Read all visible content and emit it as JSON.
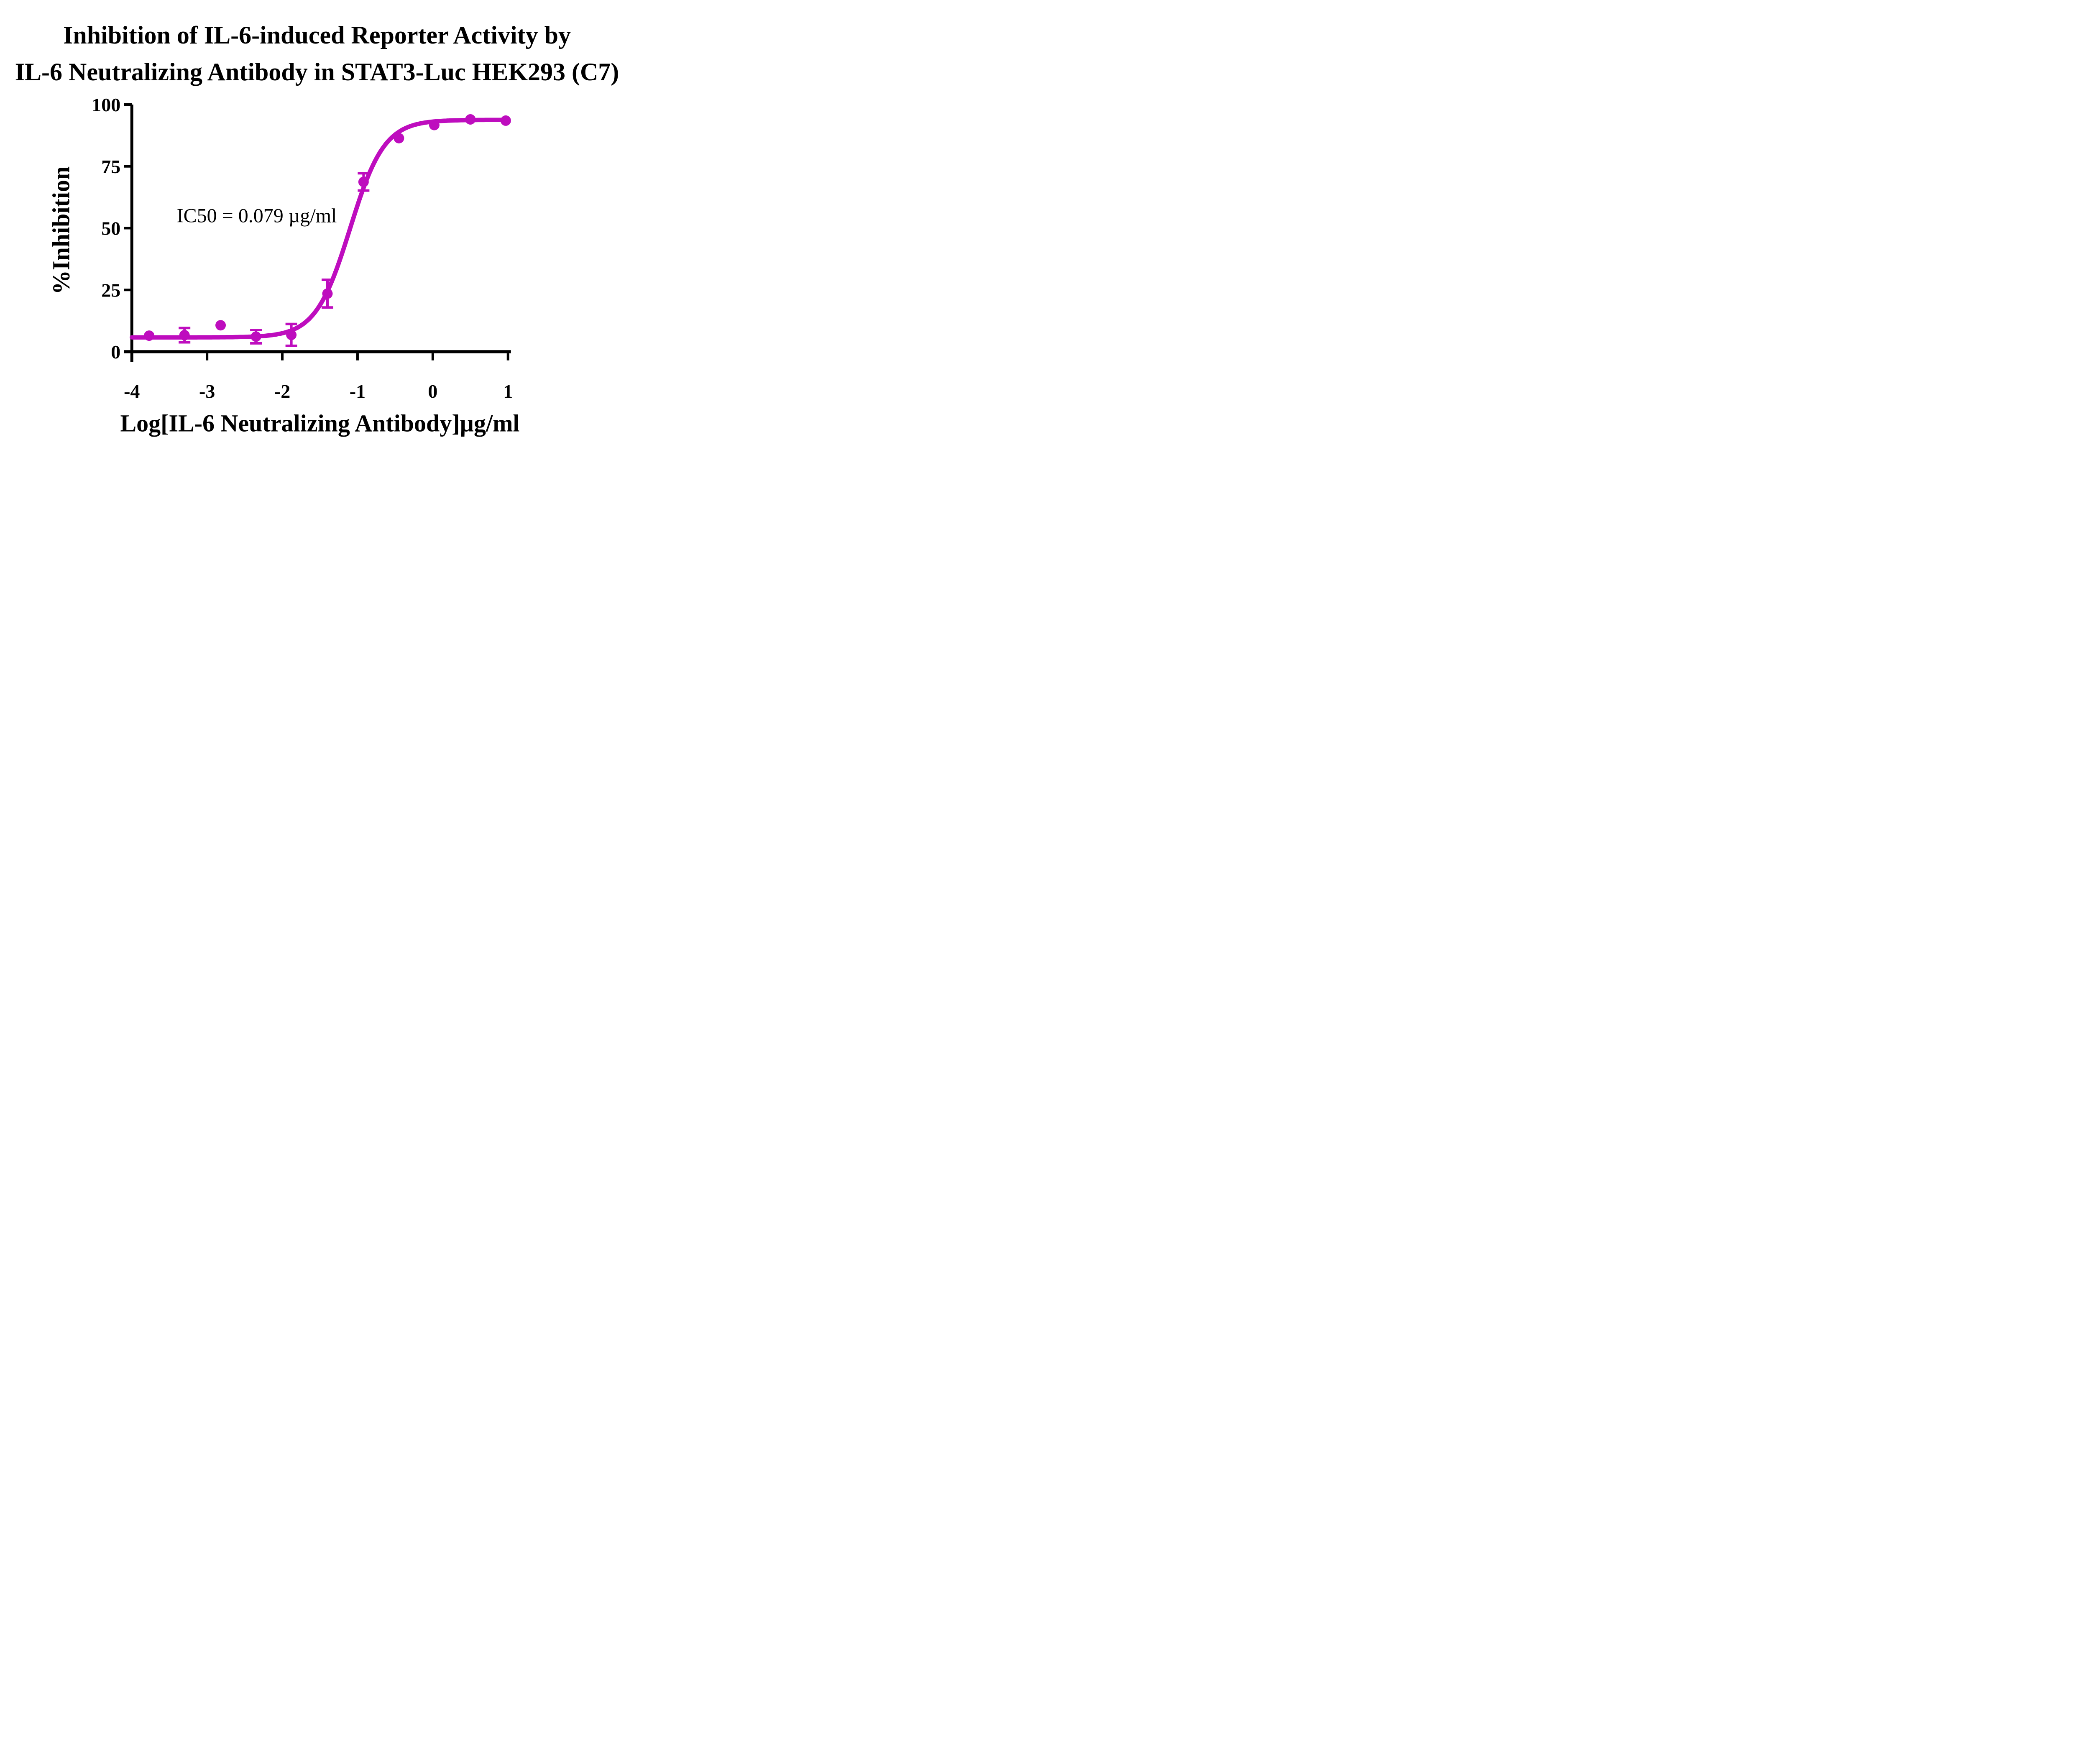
{
  "figure": {
    "title_line1": "Inhibition of IL-6-induced Reporter Activity by",
    "title_line2": "IL-6 Neutralizing Antibody in STAT3-Luc HEK293 (C7)"
  },
  "chart_data": {
    "type": "scatter",
    "title": "Inhibition of IL-6-induced Reporter Activity by IL-6 Neutralizing Antibody in STAT3-Luc HEK293 (C7)",
    "xlabel": "Log[IL-6 Neutralizing Antibody]µg/ml",
    "ylabel": "%Inhibition",
    "xlim": [
      -4,
      1
    ],
    "ylim": [
      0,
      100
    ],
    "x_ticks": [
      -4,
      -3,
      -2,
      -1,
      0,
      1
    ],
    "y_ticks": [
      0,
      25,
      50,
      75,
      100
    ],
    "grid": false,
    "legend": "none",
    "annotation": "IC50 = 0.079 µg/ml",
    "ic50_ug_ml": 0.079,
    "axis_color": "#000000",
    "series": [
      {
        "name": "IL-6 Neutralizing Antibody",
        "color": "#BE0DBE",
        "marker": "circle",
        "points": [
          {
            "x": -3.77,
            "y": 6.5,
            "err": 0
          },
          {
            "x": -3.3,
            "y": 6.7,
            "err": 2.9
          },
          {
            "x": -2.82,
            "y": 10.7,
            "err": 0
          },
          {
            "x": -2.35,
            "y": 6.1,
            "err": 2.7
          },
          {
            "x": -1.88,
            "y": 6.8,
            "err": 4.4
          },
          {
            "x": -1.4,
            "y": 23.5,
            "err": 5.6
          },
          {
            "x": -0.92,
            "y": 68.7,
            "err": 3.5
          },
          {
            "x": -0.45,
            "y": 86.4,
            "err": 0
          },
          {
            "x": 0.02,
            "y": 91.7,
            "err": 0
          },
          {
            "x": 0.5,
            "y": 94.0,
            "err": 0
          },
          {
            "x": 0.97,
            "y": 93.5,
            "err": 0
          }
        ],
        "fit_curve": {
          "model": "4PL",
          "bottom": 5.8,
          "top": 93.8,
          "logIC50": -1.1,
          "hillslope": 1.9,
          "x_start": -4.0,
          "x_end": 0.99
        }
      }
    ]
  }
}
